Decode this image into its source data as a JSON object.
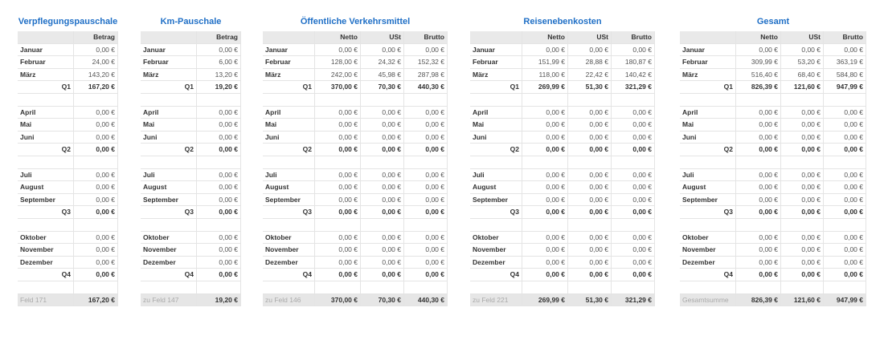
{
  "tables": [
    {
      "title": "Verpflegungspauschale",
      "headers": [
        "Betrag"
      ],
      "rows": [
        [
          "Januar",
          "0,00 €"
        ],
        [
          "Februar",
          "24,00 €"
        ],
        [
          "März",
          "143,20 €"
        ],
        [
          "Q1",
          "167,20 €"
        ],
        [
          "April",
          "0,00 €"
        ],
        [
          "Mai",
          "0,00 €"
        ],
        [
          "Juni",
          "0,00 €"
        ],
        [
          "Q2",
          "0,00 €"
        ],
        [
          "Juli",
          "0,00 €"
        ],
        [
          "August",
          "0,00 €"
        ],
        [
          "September",
          "0,00 €"
        ],
        [
          "Q3",
          "0,00 €"
        ],
        [
          "Oktober",
          "0,00 €"
        ],
        [
          "November",
          "0,00 €"
        ],
        [
          "Dezember",
          "0,00 €"
        ],
        [
          "Q4",
          "0,00 €"
        ]
      ],
      "footer": [
        "Feld 171",
        "167,20 €"
      ]
    },
    {
      "title": "Km-Pauschale",
      "headers": [
        "Betrag"
      ],
      "rows": [
        [
          "Januar",
          "0,00 €"
        ],
        [
          "Februar",
          "6,00 €"
        ],
        [
          "März",
          "13,20 €"
        ],
        [
          "Q1",
          "19,20 €"
        ],
        [
          "April",
          "0,00 €"
        ],
        [
          "Mai",
          "0,00 €"
        ],
        [
          "Juni",
          "0,00 €"
        ],
        [
          "Q2",
          "0,00 €"
        ],
        [
          "Juli",
          "0,00 €"
        ],
        [
          "August",
          "0,00 €"
        ],
        [
          "September",
          "0,00 €"
        ],
        [
          "Q3",
          "0,00 €"
        ],
        [
          "Oktober",
          "0,00 €"
        ],
        [
          "November",
          "0,00 €"
        ],
        [
          "Dezember",
          "0,00 €"
        ],
        [
          "Q4",
          "0,00 €"
        ]
      ],
      "footer": [
        "zu Feld 147",
        "19,20 €"
      ]
    },
    {
      "title": "Öffentliche Verkehrsmittel",
      "headers": [
        "Netto",
        "USt",
        "Brutto"
      ],
      "rows": [
        [
          "Januar",
          "0,00 €",
          "0,00 €",
          "0,00 €"
        ],
        [
          "Februar",
          "128,00 €",
          "24,32 €",
          "152,32 €"
        ],
        [
          "März",
          "242,00 €",
          "45,98 €",
          "287,98 €"
        ],
        [
          "Q1",
          "370,00 €",
          "70,30 €",
          "440,30 €"
        ],
        [
          "April",
          "0,00 €",
          "0,00 €",
          "0,00 €"
        ],
        [
          "Mai",
          "0,00 €",
          "0,00 €",
          "0,00 €"
        ],
        [
          "Juni",
          "0,00 €",
          "0,00 €",
          "0,00 €"
        ],
        [
          "Q2",
          "0,00 €",
          "0,00 €",
          "0,00 €"
        ],
        [
          "Juli",
          "0,00 €",
          "0,00 €",
          "0,00 €"
        ],
        [
          "August",
          "0,00 €",
          "0,00 €",
          "0,00 €"
        ],
        [
          "September",
          "0,00 €",
          "0,00 €",
          "0,00 €"
        ],
        [
          "Q3",
          "0,00 €",
          "0,00 €",
          "0,00 €"
        ],
        [
          "Oktober",
          "0,00 €",
          "0,00 €",
          "0,00 €"
        ],
        [
          "November",
          "0,00 €",
          "0,00 €",
          "0,00 €"
        ],
        [
          "Dezember",
          "0,00 €",
          "0,00 €",
          "0,00 €"
        ],
        [
          "Q4",
          "0,00 €",
          "0,00 €",
          "0,00 €"
        ]
      ],
      "footer": [
        "zu Feld 146",
        "370,00 €",
        "70,30 €",
        "440,30 €"
      ]
    },
    {
      "title": "Reisenebenkosten",
      "headers": [
        "Netto",
        "USt",
        "Brutto"
      ],
      "rows": [
        [
          "Januar",
          "0,00 €",
          "0,00 €",
          "0,00 €"
        ],
        [
          "Februar",
          "151,99 €",
          "28,88 €",
          "180,87 €"
        ],
        [
          "März",
          "118,00 €",
          "22,42 €",
          "140,42 €"
        ],
        [
          "Q1",
          "269,99 €",
          "51,30 €",
          "321,29 €"
        ],
        [
          "April",
          "0,00 €",
          "0,00 €",
          "0,00 €"
        ],
        [
          "Mai",
          "0,00 €",
          "0,00 €",
          "0,00 €"
        ],
        [
          "Juni",
          "0,00 €",
          "0,00 €",
          "0,00 €"
        ],
        [
          "Q2",
          "0,00 €",
          "0,00 €",
          "0,00 €"
        ],
        [
          "Juli",
          "0,00 €",
          "0,00 €",
          "0,00 €"
        ],
        [
          "August",
          "0,00 €",
          "0,00 €",
          "0,00 €"
        ],
        [
          "September",
          "0,00 €",
          "0,00 €",
          "0,00 €"
        ],
        [
          "Q3",
          "0,00 €",
          "0,00 €",
          "0,00 €"
        ],
        [
          "Oktober",
          "0,00 €",
          "0,00 €",
          "0,00 €"
        ],
        [
          "November",
          "0,00 €",
          "0,00 €",
          "0,00 €"
        ],
        [
          "Dezember",
          "0,00 €",
          "0,00 €",
          "0,00 €"
        ],
        [
          "Q4",
          "0,00 €",
          "0,00 €",
          "0,00 €"
        ]
      ],
      "footer": [
        "zu Feld 221",
        "269,99 €",
        "51,30 €",
        "321,29 €"
      ]
    },
    {
      "title": "Gesamt",
      "headers": [
        "Netto",
        "USt",
        "Brutto"
      ],
      "rows": [
        [
          "Januar",
          "0,00 €",
          "0,00 €",
          "0,00 €"
        ],
        [
          "Februar",
          "309,99 €",
          "53,20 €",
          "363,19 €"
        ],
        [
          "März",
          "516,40 €",
          "68,40 €",
          "584,80 €"
        ],
        [
          "Q1",
          "826,39 €",
          "121,60 €",
          "947,99 €"
        ],
        [
          "April",
          "0,00 €",
          "0,00 €",
          "0,00 €"
        ],
        [
          "Mai",
          "0,00 €",
          "0,00 €",
          "0,00 €"
        ],
        [
          "Juni",
          "0,00 €",
          "0,00 €",
          "0,00 €"
        ],
        [
          "Q2",
          "0,00 €",
          "0,00 €",
          "0,00 €"
        ],
        [
          "Juli",
          "0,00 €",
          "0,00 €",
          "0,00 €"
        ],
        [
          "August",
          "0,00 €",
          "0,00 €",
          "0,00 €"
        ],
        [
          "September",
          "0,00 €",
          "0,00 €",
          "0,00 €"
        ],
        [
          "Q3",
          "0,00 €",
          "0,00 €",
          "0,00 €"
        ],
        [
          "Oktober",
          "0,00 €",
          "0,00 €",
          "0,00 €"
        ],
        [
          "November",
          "0,00 €",
          "0,00 €",
          "0,00 €"
        ],
        [
          "Dezember",
          "0,00 €",
          "0,00 €",
          "0,00 €"
        ],
        [
          "Q4",
          "0,00 €",
          "0,00 €",
          "0,00 €"
        ]
      ],
      "footer": [
        "Gesamtsumme",
        "826,39 €",
        "121,60 €",
        "947,99 €"
      ]
    }
  ]
}
